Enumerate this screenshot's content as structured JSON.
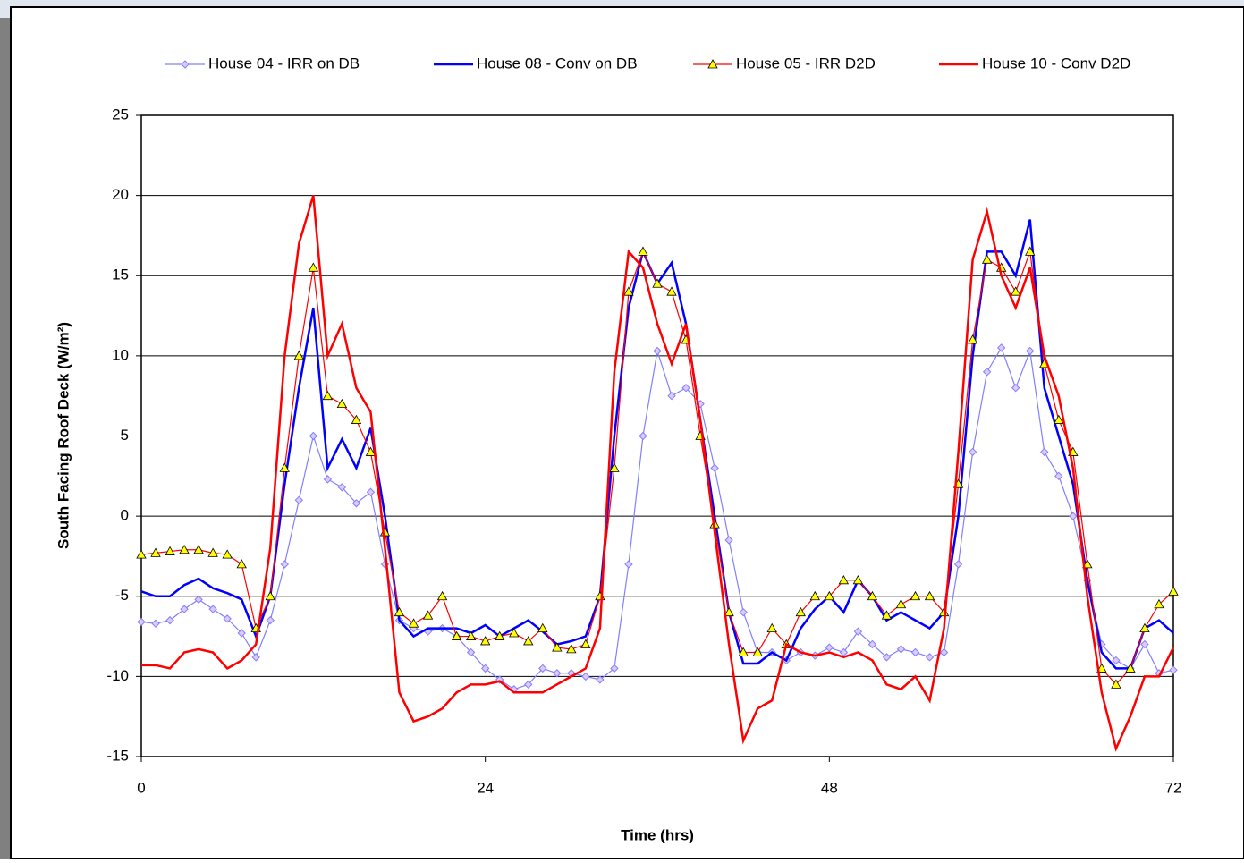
{
  "chart_data": {
    "type": "line",
    "xlabel": "Time (hrs)",
    "ylabel": "South Facing Roof Deck (W/m²)",
    "x": [
      0,
      1,
      2,
      3,
      4,
      5,
      6,
      7,
      8,
      9,
      10,
      11,
      12,
      13,
      14,
      15,
      16,
      17,
      18,
      19,
      20,
      21,
      22,
      23,
      24,
      25,
      26,
      27,
      28,
      29,
      30,
      31,
      32,
      33,
      34,
      35,
      36,
      37,
      38,
      39,
      40,
      41,
      42,
      43,
      44,
      45,
      46,
      47,
      48,
      49,
      50,
      51,
      52,
      53,
      54,
      55,
      56,
      57,
      58,
      59,
      60,
      61,
      62,
      63,
      64,
      65,
      66,
      67,
      68,
      69,
      70,
      71,
      72
    ],
    "xlim": [
      0,
      72
    ],
    "xticks": [
      0,
      24,
      48,
      72
    ],
    "ylim": [
      -15,
      25
    ],
    "yticks": [
      -15,
      -10,
      -5,
      0,
      5,
      10,
      15,
      20,
      25
    ],
    "grid": true,
    "series": [
      {
        "name": "House 04 - IRR on DB",
        "color": "#8080ff",
        "marker": "diamond",
        "values": [
          -6.6,
          -6.7,
          -6.5,
          -5.8,
          -5.2,
          -5.8,
          -6.4,
          -7.3,
          -8.8,
          -6.5,
          -3,
          1,
          5,
          2.3,
          1.8,
          0.8,
          1.5,
          -3,
          -6.5,
          -7,
          -7.2,
          -7,
          -7.5,
          -8.5,
          -9.5,
          -10.2,
          -10.8,
          -10.5,
          -9.5,
          -9.8,
          -9.8,
          -10,
          -10.2,
          -9.5,
          -3,
          5,
          10.3,
          7.5,
          8,
          7,
          3,
          -1.5,
          -6,
          -8.5,
          -8.5,
          -9,
          -8.5,
          -8.7,
          -8.2,
          -8.5,
          -7.2,
          -8,
          -8.8,
          -8.3,
          -8.5,
          -8.8,
          -8.5,
          -3,
          4,
          9,
          10.5,
          8,
          10.3,
          4,
          2.5,
          0,
          -4,
          -8,
          -9,
          -9.5,
          -8,
          -9.8,
          -9.6
        ]
      },
      {
        "name": "House 08 - Conv on DB",
        "color": "#0000ff",
        "marker": "none",
        "values": [
          -4.7,
          -5,
          -5,
          -4.3,
          -3.9,
          -4.5,
          -4.8,
          -5.2,
          -7.5,
          -5,
          2,
          8,
          13,
          3,
          4.8,
          3,
          5.5,
          0,
          -6.5,
          -7.5,
          -7,
          -7,
          -7,
          -7.3,
          -6.8,
          -7.5,
          -7,
          -6.5,
          -7.2,
          -8,
          -7.8,
          -7.5,
          -5,
          5,
          13,
          16.5,
          14.5,
          15.8,
          12,
          6,
          0,
          -6,
          -9.2,
          -9.2,
          -8.5,
          -9,
          -7,
          -5.8,
          -5,
          -6,
          -4,
          -5,
          -6.5,
          -6,
          -6.5,
          -7,
          -6,
          0,
          10,
          16.5,
          16.5,
          15,
          18.5,
          8,
          5,
          2,
          -4,
          -8.5,
          -9.5,
          -9.5,
          -7,
          -6.5,
          -7.3
        ]
      },
      {
        "name": "House 05 - IRR D2D",
        "color": "#ff0000",
        "marker": "triangle",
        "values": [
          -2.4,
          -2.3,
          -2.2,
          -2.1,
          -2.1,
          -2.3,
          -2.4,
          -3,
          -7,
          -5,
          3,
          10,
          15.5,
          7.5,
          7,
          6,
          4,
          -1,
          -6,
          -6.7,
          -6.2,
          -5,
          -7.5,
          -7.5,
          -7.8,
          -7.5,
          -7.3,
          -7.8,
          -7,
          -8.2,
          -8.3,
          -8,
          -5,
          3,
          14,
          16.5,
          14.5,
          14,
          11,
          5,
          -0.5,
          -6,
          -8.5,
          -8.5,
          -7,
          -8,
          -6,
          -5,
          -5,
          -4,
          -4,
          -5,
          -6.2,
          -5.5,
          -5,
          -5,
          -6,
          2,
          11,
          16,
          15.5,
          14,
          16.5,
          9.5,
          6,
          4,
          -3,
          -9.5,
          -10.5,
          -9.5,
          -7,
          -5.5,
          -4.7
        ]
      },
      {
        "name": "House 10 - Conv D2D",
        "color": "#ff0000",
        "marker": "none",
        "values": [
          -9.3,
          -9.3,
          -9.5,
          -8.5,
          -8.3,
          -8.5,
          -9.5,
          -9,
          -8,
          -2,
          10,
          17,
          20,
          10,
          12,
          8,
          6.5,
          -2,
          -11,
          -12.8,
          -12.5,
          -12,
          -11,
          -10.5,
          -10.5,
          -10.3,
          -11,
          -11,
          -11,
          -10.5,
          -10,
          -9.5,
          -7,
          9,
          16.5,
          15.5,
          12,
          9.5,
          12,
          6,
          -1,
          -8,
          -14,
          -12,
          -11.5,
          -8,
          -8.5,
          -8.7,
          -8.5,
          -8.8,
          -8.5,
          -9,
          -10.5,
          -10.8,
          -10,
          -11.5,
          -7,
          4,
          16,
          19,
          15,
          13,
          15.5,
          10,
          7.5,
          3,
          -5,
          -11,
          -14.5,
          -12.5,
          -10,
          -10,
          -8.2
        ]
      }
    ]
  }
}
